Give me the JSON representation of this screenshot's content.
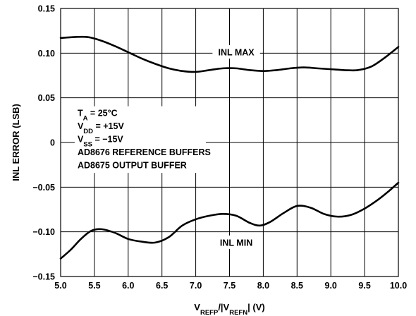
{
  "chart_data": {
    "type": "line",
    "title": "",
    "xlabel": {
      "parts": [
        {
          "text": "V",
          "sub": false
        },
        {
          "text": "REFP",
          "sub": true
        },
        {
          "text": "/|V",
          "sub": false
        },
        {
          "text": "REFN",
          "sub": true
        },
        {
          "text": "| (V)",
          "sub": false
        }
      ]
    },
    "ylabel": "INL ERROR (LSB)",
    "xlim": [
      5.0,
      10.0
    ],
    "ylim": [
      -0.15,
      0.15
    ],
    "xticks": [
      "5.0",
      "5.5",
      "6.0",
      "6.5",
      "7.0",
      "7.5",
      "8.0",
      "8.5",
      "9.0",
      "9.5",
      "10.0"
    ],
    "yticks": [
      "0.15",
      "0.10",
      "0.05",
      "0",
      "-0.05",
      "-0.10",
      "-0.15"
    ],
    "grid": true,
    "series": [
      {
        "name": "INL MAX",
        "x": [
          5.0,
          5.2,
          5.4,
          5.6,
          5.8,
          6.0,
          6.2,
          6.4,
          6.6,
          6.8,
          7.0,
          7.2,
          7.4,
          7.6,
          7.8,
          8.0,
          8.2,
          8.4,
          8.6,
          8.8,
          9.0,
          9.2,
          9.4,
          9.6,
          9.8,
          10.0
        ],
        "y": [
          0.117,
          0.118,
          0.118,
          0.114,
          0.108,
          0.101,
          0.094,
          0.088,
          0.083,
          0.08,
          0.079,
          0.081,
          0.083,
          0.083,
          0.081,
          0.08,
          0.081,
          0.083,
          0.084,
          0.083,
          0.082,
          0.081,
          0.081,
          0.085,
          0.095,
          0.107
        ]
      },
      {
        "name": "INL MIN",
        "x": [
          5.0,
          5.15,
          5.3,
          5.45,
          5.6,
          5.8,
          6.0,
          6.2,
          6.4,
          6.6,
          6.8,
          7.0,
          7.2,
          7.4,
          7.6,
          7.8,
          7.95,
          8.1,
          8.3,
          8.5,
          8.7,
          8.9,
          9.1,
          9.3,
          9.5,
          9.7,
          9.85,
          10.0
        ],
        "y": [
          -0.13,
          -0.12,
          -0.108,
          -0.099,
          -0.097,
          -0.101,
          -0.108,
          -0.111,
          -0.112,
          -0.106,
          -0.093,
          -0.086,
          -0.082,
          -0.08,
          -0.082,
          -0.09,
          -0.093,
          -0.089,
          -0.079,
          -0.071,
          -0.073,
          -0.08,
          -0.083,
          -0.081,
          -0.074,
          -0.064,
          -0.055,
          -0.045
        ]
      }
    ],
    "annotations": [
      {
        "lines": [
          [
            {
              "text": "T",
              "sub": false
            },
            {
              "text": "A",
              "sub": true
            },
            {
              "text": " = 25°C",
              "sub": false
            }
          ],
          [
            {
              "text": "V",
              "sub": false
            },
            {
              "text": "DD",
              "sub": true
            },
            {
              "text": " = +15V",
              "sub": false
            }
          ],
          [
            {
              "text": "V",
              "sub": false
            },
            {
              "text": "SS",
              "sub": true
            },
            {
              "text": " = −15V",
              "sub": false
            }
          ],
          [
            {
              "text": "AD8676 REFERENCE BUFFERS",
              "sub": false
            }
          ],
          [
            {
              "text": "AD8675 OUTPUT BUFFER",
              "sub": false
            }
          ]
        ]
      }
    ],
    "line_color": "#000000",
    "grid_color": "#000000"
  }
}
